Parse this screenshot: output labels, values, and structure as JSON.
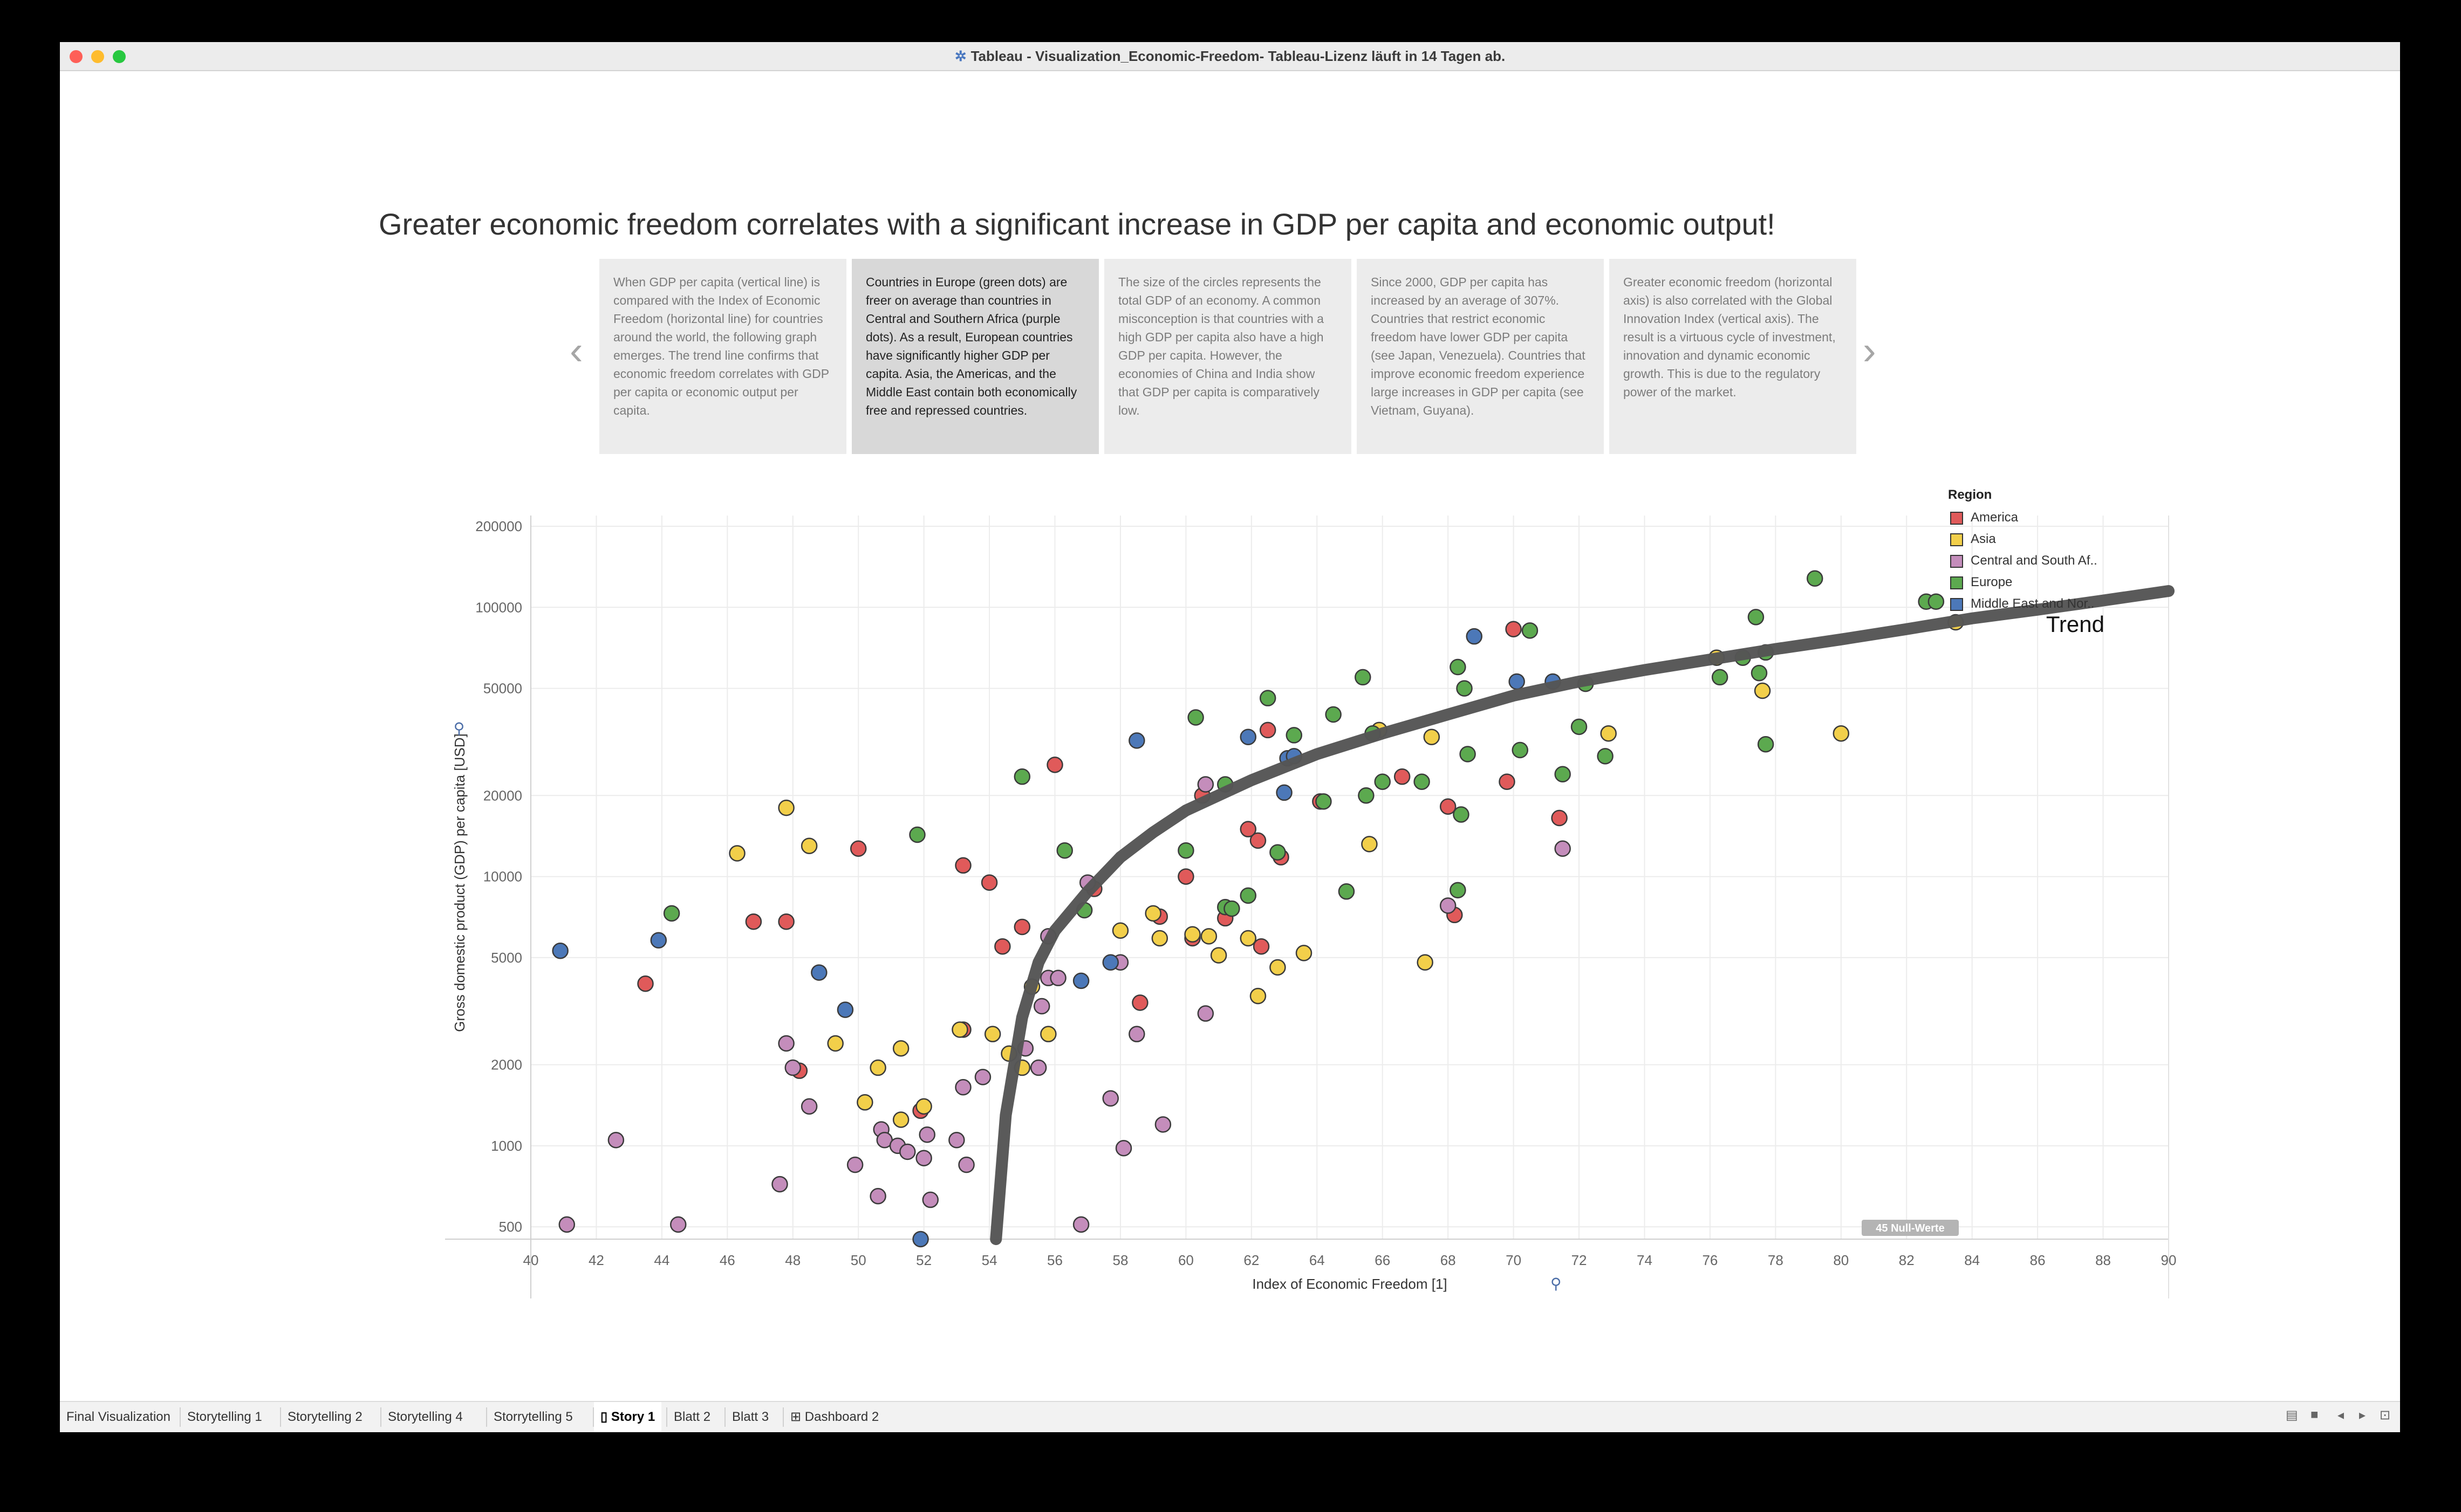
{
  "window": {
    "title": "Tableau - Visualization_Economic-Freedom- Tableau-Lizenz läuft in 14 Tagen ab.",
    "title_icon": "tableau-logo-icon"
  },
  "story": {
    "title": "Greater economic freedom correlates with a significant increase in GDP per capita and economic output!",
    "points": [
      "When GDP per capita (vertical line) is compared with the Index of Economic Freedom (horizontal line) for countries around the world, the following graph emerges. The trend line confirms that economic freedom correlates with GDP per capita or economic output per capita.",
      "Countries in Europe (green dots) are freer on average than countries in Central and Southern Africa (purple dots). As a result, European countries have significantly higher GDP per capita. Asia, the Americas, and the Middle East contain both economically free and repressed countries.",
      "The size of the circles represents the total GDP of an economy. A common misconception is that countries with a high GDP per capita also have a high GDP per capita. However, the economies of China and India show that GDP per capita is comparatively low.",
      "Since 2000, GDP per capita has increased by an average of 307%. Countries that restrict economic freedom have lower GDP per capita (see Japan, Venezuela). Countries that improve economic freedom experience large increases in GDP per capita (see Vietnam, Guyana).",
      "Greater economic freedom (horizontal axis) is also correlated with the Global Innovation Index (vertical axis).  The result is a virtuous cycle of investment, innovation and dynamic economic growth. This is due to the regulatory power of the market."
    ],
    "active_point": 1,
    "prev_arrow": "‹",
    "next_arrow": "›"
  },
  "legend": {
    "title": "Region",
    "items": [
      {
        "label": "America",
        "color": "#e05a5a"
      },
      {
        "label": "Asia",
        "color": "#f2cf4a"
      },
      {
        "label": "Central and South Af..",
        "color": "#c48dbb"
      },
      {
        "label": "Europe",
        "color": "#5ca94f"
      },
      {
        "label": "Middle East and Nor..",
        "color": "#4c78b8"
      }
    ]
  },
  "chart_data": {
    "type": "scatter",
    "xlabel": "Index of Economic Freedom [1]",
    "ylabel": "Gross domestic product (GDP) per capita [USD]",
    "xlim": [
      40,
      90
    ],
    "ylim": [
      450,
      200000
    ],
    "y_scale": "log",
    "x_ticks": [
      40,
      42,
      44,
      46,
      48,
      50,
      52,
      54,
      56,
      58,
      60,
      62,
      64,
      66,
      68,
      70,
      72,
      74,
      76,
      78,
      80,
      82,
      84,
      86,
      88,
      90
    ],
    "y_ticks": [
      500,
      1000,
      2000,
      5000,
      10000,
      20000,
      50000,
      100000,
      200000
    ],
    "grid": true,
    "trend_label": "Trend",
    "trend": [
      [
        54.2,
        450
      ],
      [
        54.5,
        1300
      ],
      [
        55,
        3000
      ],
      [
        55.5,
        4800
      ],
      [
        56,
        6300
      ],
      [
        57,
        8800
      ],
      [
        58,
        11800
      ],
      [
        59,
        14600
      ],
      [
        60,
        17600
      ],
      [
        62,
        22800
      ],
      [
        64,
        28500
      ],
      [
        66,
        34000
      ],
      [
        68,
        40000
      ],
      [
        70,
        47000
      ],
      [
        72,
        53000
      ],
      [
        74,
        58500
      ],
      [
        76,
        64000
      ],
      [
        78,
        70000
      ],
      [
        80,
        76000
      ],
      [
        82,
        83000
      ],
      [
        84,
        91000
      ],
      [
        86,
        98000
      ],
      [
        88,
        106000
      ],
      [
        90,
        115000
      ]
    ],
    "null_badge": "45 Null-Werte",
    "points": {
      "America": [
        [
          43.5,
          4000
        ],
        [
          46.8,
          6800
        ],
        [
          47.8,
          6800
        ],
        [
          48.2,
          1900
        ],
        [
          50,
          12700
        ],
        [
          51.9,
          1350
        ],
        [
          53.2,
          2700
        ],
        [
          53.2,
          11000
        ],
        [
          54,
          9500
        ],
        [
          54.4,
          5500
        ],
        [
          55,
          6500
        ],
        [
          56,
          26000
        ],
        [
          57.2,
          9000
        ],
        [
          58.6,
          3400
        ],
        [
          59.2,
          7100
        ],
        [
          60,
          10000
        ],
        [
          60.2,
          5900
        ],
        [
          60.5,
          20000
        ],
        [
          61.2,
          7000
        ],
        [
          61.9,
          15000
        ],
        [
          62.2,
          13600
        ],
        [
          62.3,
          5500
        ],
        [
          62.5,
          35000
        ],
        [
          62.9,
          11800
        ],
        [
          64.1,
          19000
        ],
        [
          66.6,
          23500
        ],
        [
          68,
          18200
        ],
        [
          68.2,
          7200
        ],
        [
          69.8,
          22500
        ],
        [
          70,
          83000
        ],
        [
          71.4,
          16500
        ]
      ],
      "Asia": [
        [
          46.3,
          12200
        ],
        [
          47.8,
          18000
        ],
        [
          48.5,
          13000
        ],
        [
          49.3,
          2400
        ],
        [
          50.2,
          1450
        ],
        [
          50.6,
          1950
        ],
        [
          51.3,
          1250
        ],
        [
          51.3,
          2300
        ],
        [
          52,
          1400
        ],
        [
          53.1,
          2700
        ],
        [
          54.1,
          2600
        ],
        [
          54.6,
          2200
        ],
        [
          55,
          1950
        ],
        [
          55.3,
          3900
        ],
        [
          55.8,
          2600
        ],
        [
          58,
          6300
        ],
        [
          59,
          7300
        ],
        [
          59.2,
          5900
        ],
        [
          60.2,
          6100
        ],
        [
          60.7,
          6000
        ],
        [
          61,
          5100
        ],
        [
          61.9,
          5900
        ],
        [
          62.2,
          3600
        ],
        [
          62.8,
          4600
        ],
        [
          63.6,
          5200
        ],
        [
          65.6,
          13200
        ],
        [
          65.9,
          35000
        ],
        [
          67.3,
          4800
        ],
        [
          67.5,
          33000
        ],
        [
          76.2,
          65000
        ],
        [
          77.6,
          49000
        ],
        [
          80,
          34000
        ],
        [
          83.5,
          88000
        ],
        [
          72.9,
          34000
        ]
      ],
      "Central and South Af..": [
        [
          41.1,
          510
        ],
        [
          42.6,
          1050
        ],
        [
          44.5,
          510
        ],
        [
          47.6,
          720
        ],
        [
          47.8,
          2400
        ],
        [
          48,
          1950
        ],
        [
          48.5,
          1400
        ],
        [
          49.9,
          850
        ],
        [
          50.6,
          650
        ],
        [
          50.7,
          1150
        ],
        [
          50.8,
          1050
        ],
        [
          51.2,
          1000
        ],
        [
          51.5,
          950
        ],
        [
          52.0,
          900
        ],
        [
          52.2,
          630
        ],
        [
          52.1,
          1100
        ],
        [
          53,
          1050
        ],
        [
          53.2,
          1650
        ],
        [
          53.3,
          850
        ],
        [
          53.8,
          1800
        ],
        [
          55.5,
          1950
        ],
        [
          55.6,
          3300
        ],
        [
          55.8,
          6000
        ],
        [
          55.8,
          4200
        ],
        [
          56.1,
          4200
        ],
        [
          57,
          9500
        ],
        [
          57.7,
          1500
        ],
        [
          58,
          4800
        ],
        [
          58.1,
          980
        ],
        [
          58.5,
          2600
        ],
        [
          59.3,
          1200
        ],
        [
          60.6,
          22000
        ],
        [
          60.6,
          3100
        ],
        [
          56.8,
          510
        ],
        [
          68,
          7800
        ],
        [
          71.5,
          12700
        ],
        [
          55.1,
          2300
        ]
      ],
      "Europe": [
        [
          44.3,
          7300
        ],
        [
          51.8,
          14300
        ],
        [
          55,
          23500
        ],
        [
          56.3,
          12500
        ],
        [
          56.9,
          7500
        ],
        [
          60.3,
          39000
        ],
        [
          60,
          12500
        ],
        [
          61.2,
          22000
        ],
        [
          61.2,
          7700
        ],
        [
          61.4,
          7600
        ],
        [
          61.9,
          8500
        ],
        [
          62.5,
          46000
        ],
        [
          62.8,
          12300
        ],
        [
          63.3,
          33500
        ],
        [
          64.5,
          40000
        ],
        [
          64.9,
          8800
        ],
        [
          65.4,
          55000
        ],
        [
          65.7,
          34000
        ],
        [
          66,
          22500
        ],
        [
          67.2,
          22500
        ],
        [
          68.3,
          60000
        ],
        [
          68.4,
          17000
        ],
        [
          68.5,
          50000
        ],
        [
          68.6,
          28500
        ],
        [
          68.3,
          8900
        ],
        [
          70.2,
          29500
        ],
        [
          70.5,
          82000
        ],
        [
          71.5,
          24000
        ],
        [
          72,
          36000
        ],
        [
          72.2,
          52000
        ],
        [
          72.8,
          28000
        ],
        [
          76.3,
          55000
        ],
        [
          77,
          65000
        ],
        [
          77.4,
          92000
        ],
        [
          77.5,
          57000
        ],
        [
          77.7,
          68000
        ],
        [
          77.7,
          31000
        ],
        [
          79.2,
          128000
        ],
        [
          82.6,
          105000
        ],
        [
          82.9,
          105000
        ],
        [
          65.5,
          20000
        ],
        [
          64.2,
          19000
        ]
      ],
      "Middle East and Nor..": [
        [
          40.9,
          5300
        ],
        [
          43.9,
          5800
        ],
        [
          48.8,
          4400
        ],
        [
          49.6,
          3200
        ],
        [
          56.8,
          4100
        ],
        [
          57.7,
          4800
        ],
        [
          58.5,
          32000
        ],
        [
          61.9,
          33000
        ],
        [
          63.1,
          27500
        ],
        [
          63.3,
          28000
        ],
        [
          63,
          20500
        ],
        [
          68.8,
          78000
        ],
        [
          70.1,
          53000
        ],
        [
          71.2,
          53000
        ],
        [
          51.9,
          450
        ]
      ]
    }
  },
  "tabs": [
    {
      "label": "Final Visualization",
      "icon": ""
    },
    {
      "label": "Storytelling 1",
      "icon": ""
    },
    {
      "label": "Storytelling 2",
      "icon": ""
    },
    {
      "label": "Storytelling 4",
      "icon": ""
    },
    {
      "label": "Storrytelling 5",
      "icon": ""
    },
    {
      "label": "Story 1",
      "icon": "story-icon"
    },
    {
      "label": "Blatt 2",
      "icon": ""
    },
    {
      "label": "Blatt 3",
      "icon": ""
    },
    {
      "label": "Dashboard 2",
      "icon": "dashboard-icon"
    }
  ],
  "active_tab": 5,
  "status_icons": [
    "grid-view-icon",
    "film-strip-icon",
    "prev-sheet-icon",
    "next-sheet-icon",
    "presentation-icon"
  ]
}
